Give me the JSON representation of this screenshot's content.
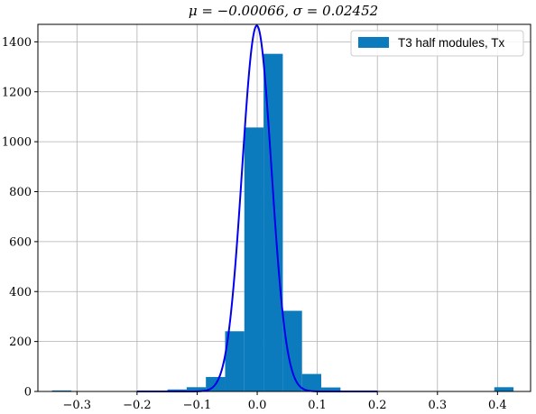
{
  "chart_data": {
    "type": "bar",
    "title": "μ = −0.00066,  σ = 0.02452",
    "xlabel": "",
    "ylabel": "",
    "xlim": [
      -0.365,
      0.455
    ],
    "ylim": [
      0,
      1470
    ],
    "grid": true,
    "legend_position": "top-right",
    "xticks": [
      -0.3,
      -0.2,
      -0.1,
      0.0,
      0.1,
      0.2,
      0.3,
      0.4
    ],
    "xtick_labels": [
      "−0.3",
      "−0.2",
      "−0.1",
      "0.0",
      "0.1",
      "0.2",
      "0.3",
      "0.4"
    ],
    "yticks": [
      0,
      200,
      400,
      600,
      800,
      1000,
      1200,
      1400
    ],
    "ytick_labels": [
      "0",
      "200",
      "400",
      "600",
      "800",
      "1000",
      "1200",
      "1400"
    ],
    "histogram": {
      "name": "T3 half modules, Tx",
      "color": "#0c7bbd",
      "bin_edges": [
        -0.3414,
        -0.3094,
        -0.2774,
        -0.2454,
        -0.2134,
        -0.1814,
        -0.1494,
        -0.1174,
        -0.0854,
        -0.0534,
        -0.0214,
        0.0106,
        0.0426,
        0.0746,
        0.1066,
        0.1386,
        0.1706,
        0.2026,
        0.2346,
        0.2666,
        0.2986,
        0.3306,
        0.3626,
        0.3946,
        0.4266
      ],
      "counts": [
        4,
        0,
        0,
        0,
        0,
        2,
        8,
        17,
        58,
        241,
        1057,
        1352,
        323,
        70,
        16,
        2,
        1,
        1,
        0,
        0,
        0,
        0,
        0,
        17
      ]
    },
    "fit_curve": {
      "type": "gaussian",
      "color": "#0000ee",
      "mu": -0.00066,
      "sigma": 0.02452,
      "amplitude": 1465
    }
  }
}
